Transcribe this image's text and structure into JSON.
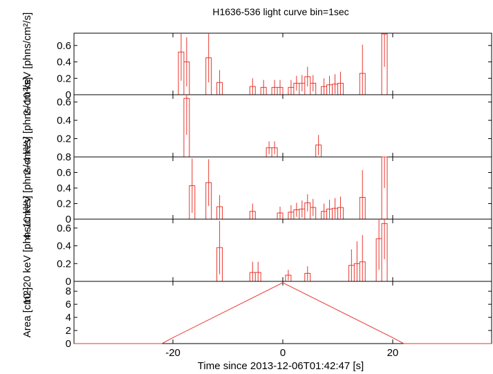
{
  "chart_data": {
    "type": "line",
    "title": "H1636-536 light curve bin=1sec",
    "xlabel": "Time since 2013-12-06T01:42:47 [s]",
    "xlim": [
      -38,
      38
    ],
    "x_ticks": [
      -20,
      0,
      20
    ],
    "color": "#e8332a",
    "panels": [
      {
        "id": "2-10keV",
        "ylabel": "2–10 keV [phns/cm²/s]",
        "ylim": [
          0,
          0.75
        ],
        "y_ticks": [
          0,
          0.2,
          0.4,
          0.6
        ],
        "style": "step",
        "points": [
          {
            "x": -18.5,
            "y": 0.52,
            "err": 0.35
          },
          {
            "x": -17.5,
            "y": 0.4,
            "err": 0.3
          },
          {
            "x": -13.5,
            "y": 0.45,
            "err": 0.3
          },
          {
            "x": -11.5,
            "y": 0.15,
            "err": 0.15
          },
          {
            "x": -5.5,
            "y": 0.1,
            "err": 0.1
          },
          {
            "x": -3.5,
            "y": 0.09,
            "err": 0.09
          },
          {
            "x": -1.5,
            "y": 0.09,
            "err": 0.09
          },
          {
            "x": -0.5,
            "y": 0.09,
            "err": 0.09
          },
          {
            "x": 1.5,
            "y": 0.09,
            "err": 0.09
          },
          {
            "x": 2.5,
            "y": 0.14,
            "err": 0.09
          },
          {
            "x": 3.5,
            "y": 0.14,
            "err": 0.1
          },
          {
            "x": 4.5,
            "y": 0.22,
            "err": 0.12
          },
          {
            "x": 5.5,
            "y": 0.14,
            "err": 0.1
          },
          {
            "x": 7.5,
            "y": 0.1,
            "err": 0.1
          },
          {
            "x": 8.5,
            "y": 0.12,
            "err": 0.11
          },
          {
            "x": 9.5,
            "y": 0.13,
            "err": 0.12
          },
          {
            "x": 10.5,
            "y": 0.14,
            "err": 0.14
          },
          {
            "x": 14.5,
            "y": 0.26,
            "err": 0.35
          },
          {
            "x": 18.5,
            "y": 0.74,
            "err": 0.4
          }
        ]
      },
      {
        "id": "2-4keV",
        "ylabel": "2–4 keV [phns/cm²/s]",
        "ylim": [
          0,
          0.68
        ],
        "y_ticks": [
          0.2,
          0.4,
          0.6
        ],
        "style": "step",
        "points": [
          {
            "x": -17.5,
            "y": 0.64,
            "err": 0.4
          },
          {
            "x": -2.5,
            "y": 0.1,
            "err": 0.07
          },
          {
            "x": -1.5,
            "y": 0.1,
            "err": 0.07
          },
          {
            "x": 6.5,
            "y": 0.13,
            "err": 0.11
          }
        ]
      },
      {
        "id": "4-10keV",
        "ylabel": "4–10 keV [phns/cm²/s]",
        "ylim": [
          0,
          0.8
        ],
        "y_ticks": [
          0,
          0.2,
          0.4,
          0.6,
          0.8
        ],
        "style": "step",
        "points": [
          {
            "x": -16.5,
            "y": 0.43,
            "err": 0.35
          },
          {
            "x": -13.5,
            "y": 0.47,
            "err": 0.3
          },
          {
            "x": -11.5,
            "y": 0.16,
            "err": 0.15
          },
          {
            "x": -5.5,
            "y": 0.1,
            "err": 0.1
          },
          {
            "x": -0.5,
            "y": 0.08,
            "err": 0.08
          },
          {
            "x": 1.5,
            "y": 0.09,
            "err": 0.09
          },
          {
            "x": 2.5,
            "y": 0.12,
            "err": 0.09
          },
          {
            "x": 3.5,
            "y": 0.13,
            "err": 0.11
          },
          {
            "x": 4.5,
            "y": 0.21,
            "err": 0.11
          },
          {
            "x": 5.5,
            "y": 0.15,
            "err": 0.11
          },
          {
            "x": 7.5,
            "y": 0.1,
            "err": 0.1
          },
          {
            "x": 8.5,
            "y": 0.13,
            "err": 0.12
          },
          {
            "x": 9.5,
            "y": 0.14,
            "err": 0.13
          },
          {
            "x": 10.5,
            "y": 0.15,
            "err": 0.14
          },
          {
            "x": 14.5,
            "y": 0.28,
            "err": 0.35
          },
          {
            "x": 18.5,
            "y": 0.8,
            "err": 0.4
          }
        ]
      },
      {
        "id": "10-20keV",
        "ylabel": "10–20 keV [phns/cm²/s]",
        "ylim": [
          0,
          0.7
        ],
        "y_ticks": [
          0,
          0.2,
          0.4,
          0.6
        ],
        "style": "step",
        "points": [
          {
            "x": -11.5,
            "y": 0.38,
            "err": 0.3
          },
          {
            "x": -5.5,
            "y": 0.1,
            "err": 0.12
          },
          {
            "x": -4.5,
            "y": 0.1,
            "err": 0.12
          },
          {
            "x": 1.0,
            "y": 0.07,
            "err": 0.06
          },
          {
            "x": 4.5,
            "y": 0.09,
            "err": 0.08
          },
          {
            "x": 12.5,
            "y": 0.18,
            "err": 0.18
          },
          {
            "x": 13.5,
            "y": 0.2,
            "err": 0.25
          },
          {
            "x": 14.5,
            "y": 0.22,
            "err": 0.3
          },
          {
            "x": 17.5,
            "y": 0.48,
            "err": 0.35
          },
          {
            "x": 18.5,
            "y": 0.65,
            "err": 0.4
          }
        ]
      },
      {
        "id": "area",
        "ylabel": "Area [cm2]",
        "ylim": [
          0,
          9.5
        ],
        "y_ticks": [
          0,
          2,
          4,
          6,
          8
        ],
        "style": "line",
        "x": [
          -38,
          -22,
          -20,
          0,
          20,
          22,
          38
        ],
        "y": [
          0,
          0,
          0.9,
          9.3,
          0.9,
          0,
          0
        ]
      }
    ]
  }
}
